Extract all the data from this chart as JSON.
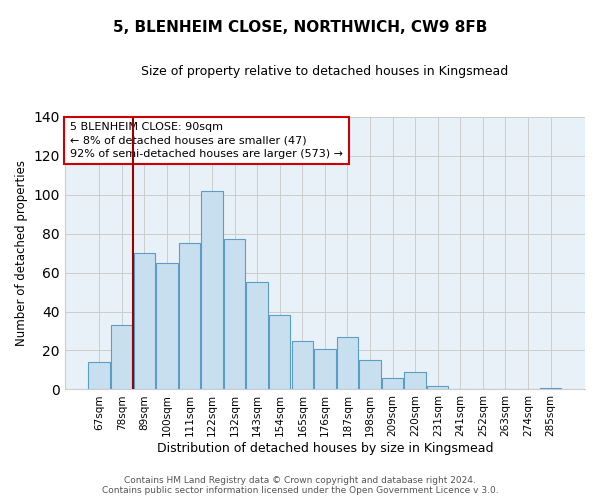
{
  "title": "5, BLENHEIM CLOSE, NORTHWICH, CW9 8FB",
  "subtitle": "Size of property relative to detached houses in Kingsmead",
  "xlabel": "Distribution of detached houses by size in Kingsmead",
  "ylabel": "Number of detached properties",
  "bar_color": "#c8dff0",
  "bar_edge_color": "#5b9dc4",
  "categories": [
    "67sqm",
    "78sqm",
    "89sqm",
    "100sqm",
    "111sqm",
    "122sqm",
    "132sqm",
    "143sqm",
    "154sqm",
    "165sqm",
    "176sqm",
    "187sqm",
    "198sqm",
    "209sqm",
    "220sqm",
    "231sqm",
    "241sqm",
    "252sqm",
    "263sqm",
    "274sqm",
    "285sqm"
  ],
  "values": [
    14,
    33,
    70,
    65,
    75,
    102,
    77,
    55,
    38,
    25,
    21,
    27,
    15,
    6,
    9,
    2,
    0,
    0,
    0,
    0,
    1
  ],
  "ylim": [
    0,
    140
  ],
  "yticks": [
    0,
    20,
    40,
    60,
    80,
    100,
    120,
    140
  ],
  "annotation_line1": "5 BLENHEIM CLOSE: 90sqm",
  "annotation_line2": "← 8% of detached houses are smaller (47)",
  "annotation_line3": "92% of semi-detached houses are larger (573) →",
  "vline_index": 2,
  "vline_color": "#990000",
  "grid_color": "#cccccc",
  "plot_bg_color": "#e8f0f8",
  "footer_text": "Contains HM Land Registry data © Crown copyright and database right 2024.\nContains public sector information licensed under the Open Government Licence v 3.0.",
  "background_color": "#ffffff"
}
